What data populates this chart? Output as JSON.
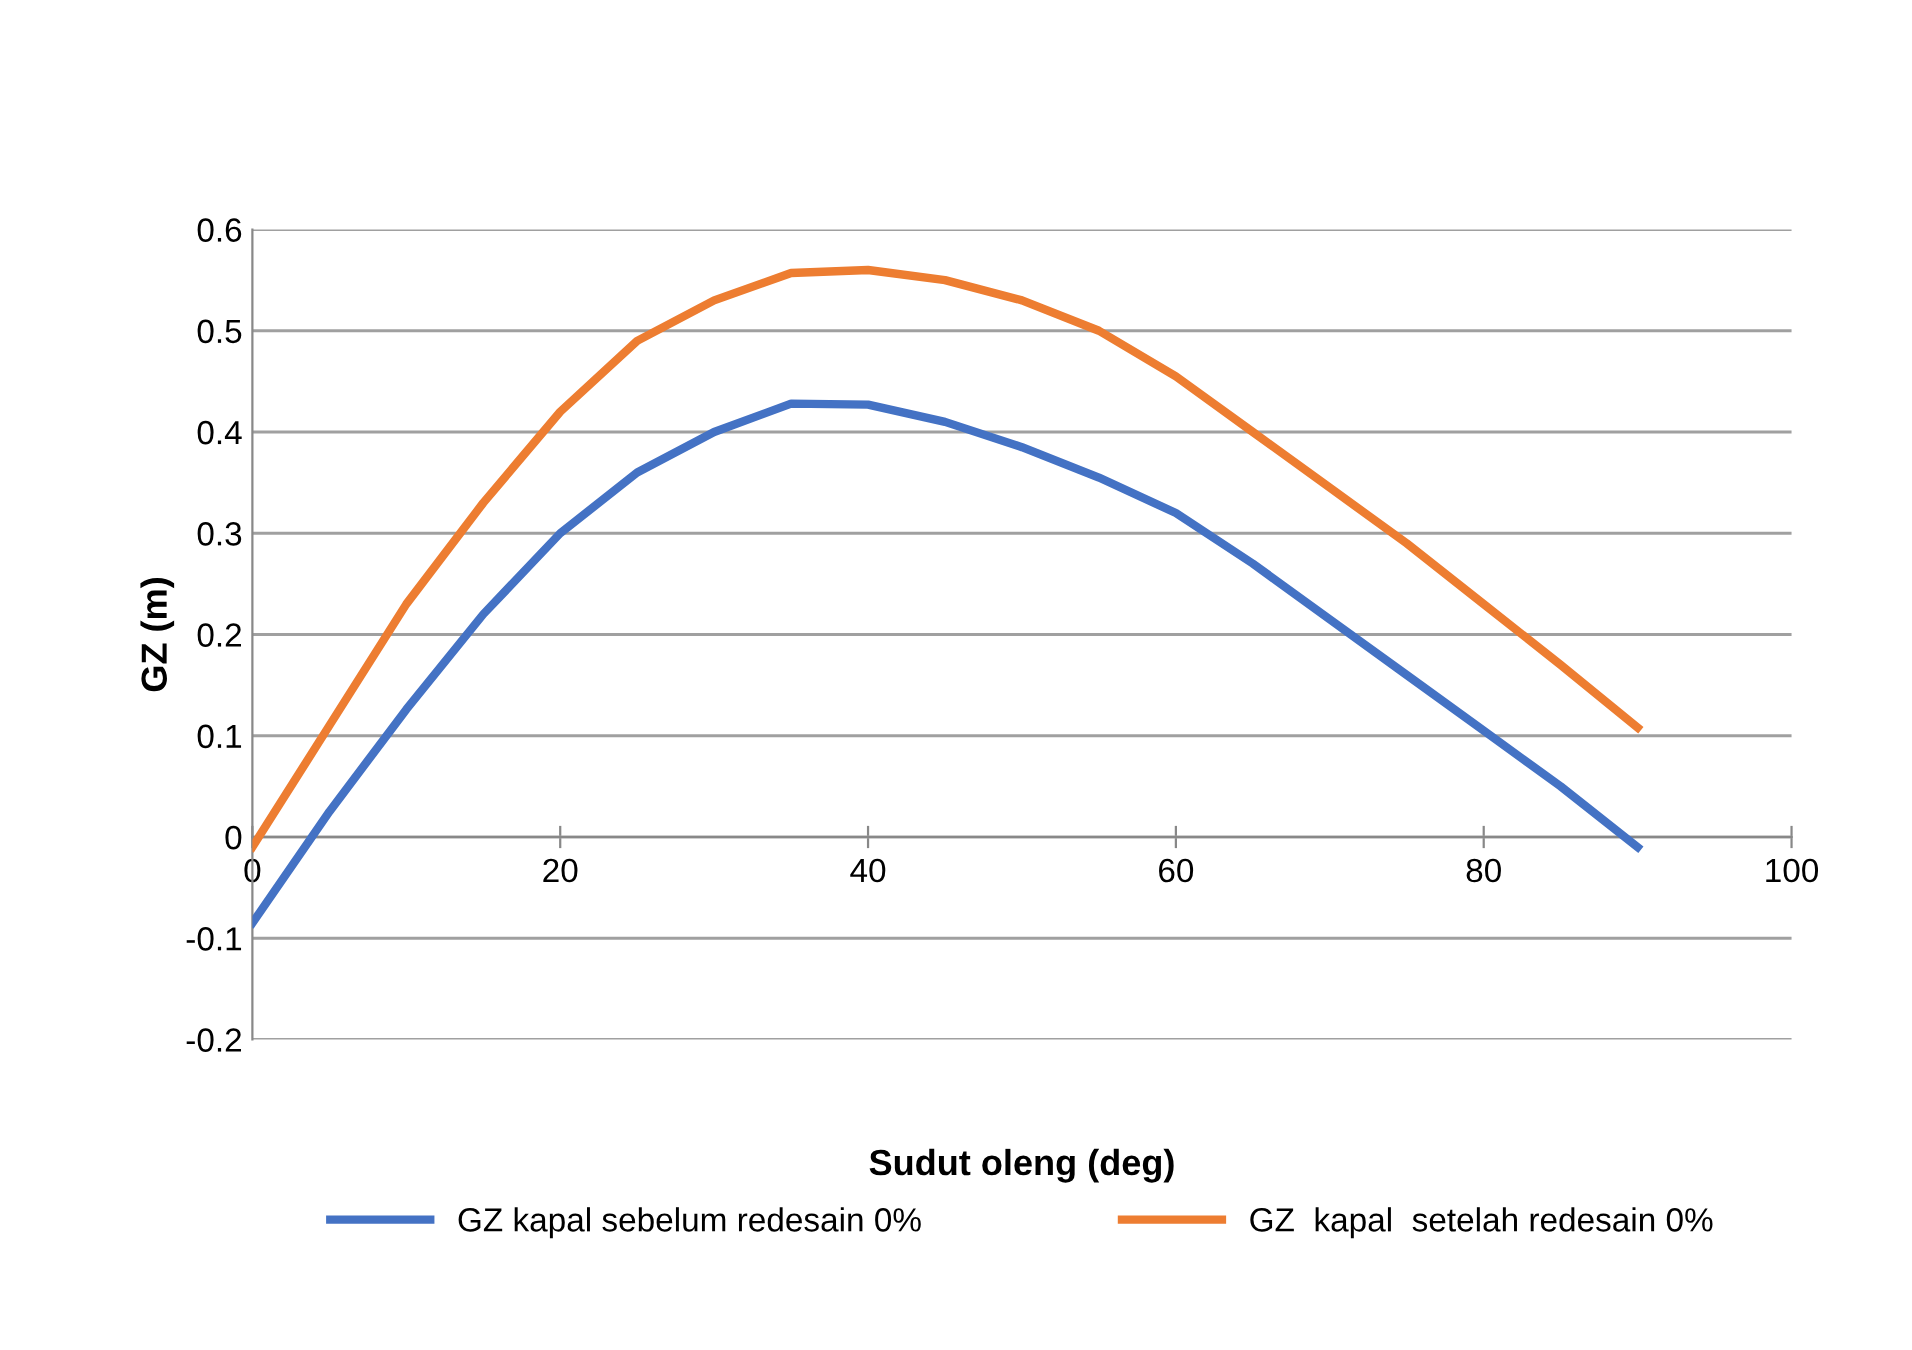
{
  "chart_data": {
    "type": "line",
    "xlabel": "Sudut oleng (deg)",
    "ylabel": "GZ (m)",
    "x": [
      0,
      5,
      10,
      15,
      20,
      25,
      30,
      35,
      40,
      45,
      50,
      55,
      60,
      65,
      70,
      75,
      80,
      85,
      90
    ],
    "series": [
      {
        "name": "GZ kapal sebelum redesain 0%",
        "color": "#4472c4",
        "values": [
          -0.085,
          0.025,
          0.126,
          0.22,
          0.3,
          0.36,
          0.4,
          0.428,
          0.427,
          0.41,
          0.385,
          0.355,
          0.32,
          0.27,
          0.215,
          0.16,
          0.105,
          0.05,
          -0.01
        ]
      },
      {
        "name": "GZ  kapal  setelah redesain 0%",
        "color": "#ed7d31",
        "values": [
          -0.01,
          0.11,
          0.23,
          0.33,
          0.42,
          0.49,
          0.53,
          0.557,
          0.56,
          0.55,
          0.53,
          0.5,
          0.455,
          0.4,
          0.345,
          0.29,
          0.23,
          0.17,
          0.108
        ]
      }
    ],
    "xlim": [
      0,
      100
    ],
    "xticks": [
      0,
      20,
      40,
      60,
      80,
      100
    ],
    "ylim": [
      -0.2,
      0.6
    ],
    "yticks": [
      -0.2,
      -0.1,
      0,
      0.1,
      0.2,
      0.3,
      0.4,
      0.5,
      0.6
    ],
    "grid": "y",
    "legend": "bottom",
    "marker": "none",
    "line_style": "solid"
  }
}
